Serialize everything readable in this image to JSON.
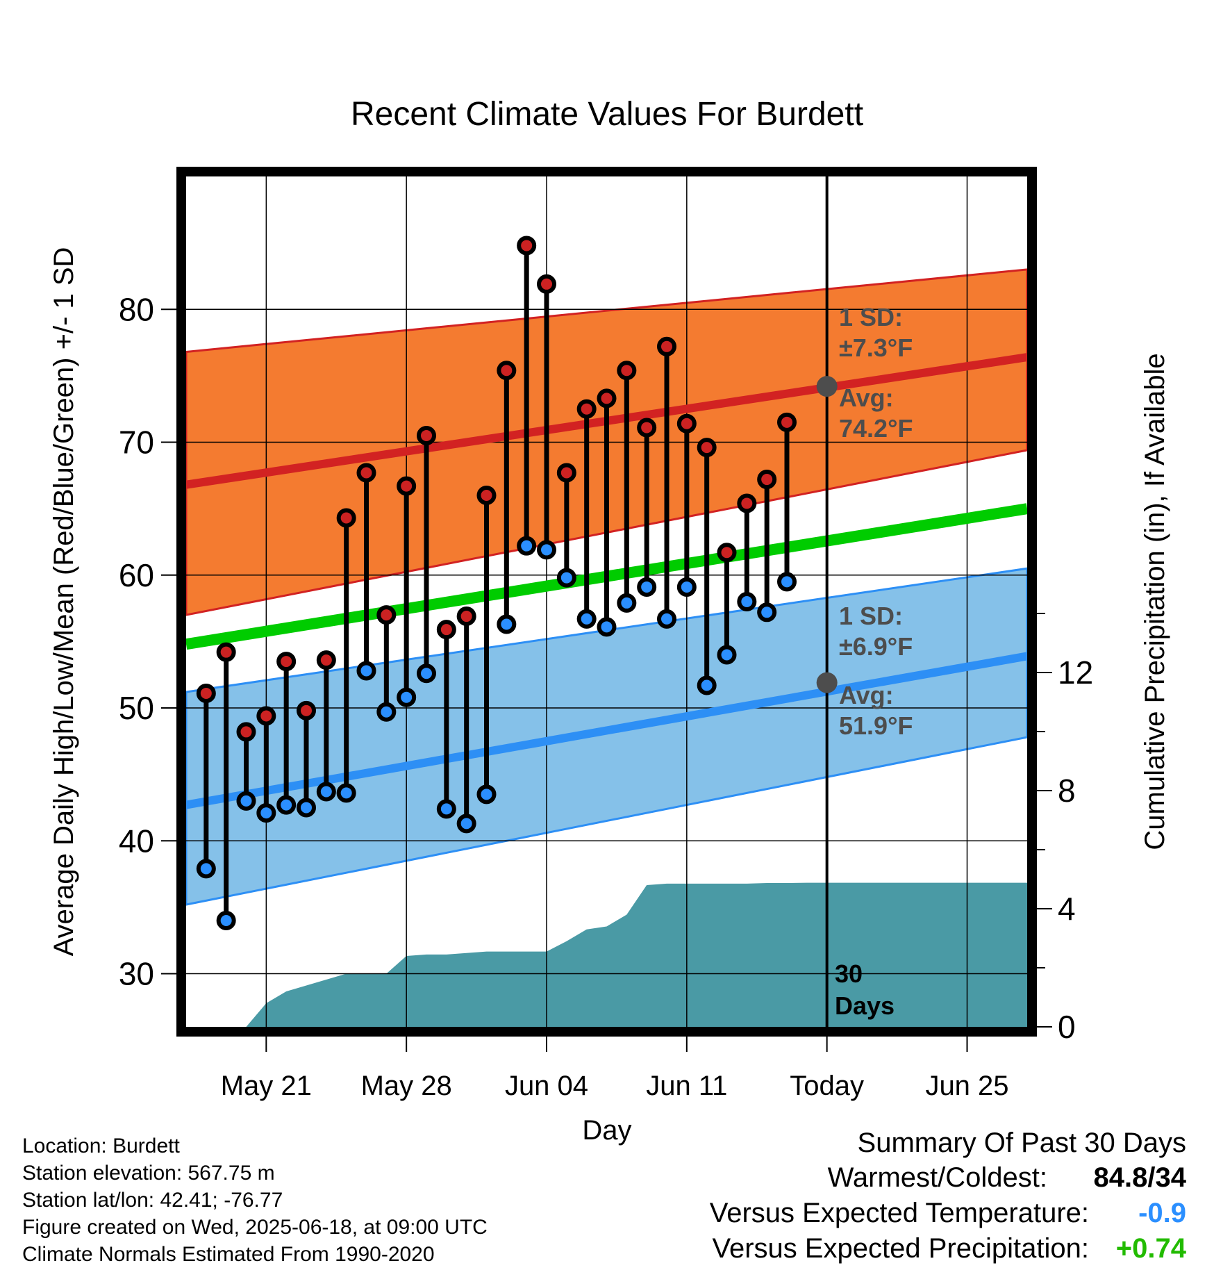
{
  "chart_data": {
    "type": "line",
    "title": "Recent Climate Values For Burdett",
    "xlabel": "Day",
    "ylabel": "Average Daily High/Low/Mean (Red/Blue/Green) +/- 1 SD",
    "y2label": "Cumulative Precipitation (in), If Available",
    "ylim": [
      26,
      90
    ],
    "y2lim": [
      0,
      28.8
    ],
    "x_range_days": [
      "2025-05-17",
      "2025-06-28"
    ],
    "x_ticks": [
      {
        "date": "2025-05-21",
        "label": "May 21"
      },
      {
        "date": "2025-05-28",
        "label": "May 28"
      },
      {
        "date": "2025-06-04",
        "label": "Jun 04"
      },
      {
        "date": "2025-06-11",
        "label": "Jun 11"
      },
      {
        "date": "2025-06-18",
        "label": "Today"
      },
      {
        "date": "2025-06-25",
        "label": "Jun 25"
      }
    ],
    "y_ticks": [
      "30",
      "40",
      "50",
      "60",
      "70",
      "80"
    ],
    "y2_ticks": [
      "0",
      "4",
      "8",
      "12"
    ],
    "grid": true,
    "today_marker": {
      "date": "2025-06-18",
      "label_line1": "30",
      "label_line2": "Days"
    },
    "normals": {
      "dates": [
        "2025-05-17",
        "2025-06-28"
      ],
      "high_avg": [
        66.8,
        76.4
      ],
      "high_upper": [
        76.8,
        83.0
      ],
      "high_lower": [
        57.0,
        69.4
      ],
      "mean_avg": [
        54.8,
        65.0
      ],
      "low_avg": [
        42.7,
        53.9
      ],
      "low_upper": [
        51.2,
        60.5
      ],
      "low_lower": [
        35.2,
        47.8
      ]
    },
    "high_annotation": {
      "sd_label": "1 SD:",
      "sd_value": "±7.3°F",
      "avg_label": "Avg:",
      "avg_value": "74.2°F",
      "avg": 74.2
    },
    "low_annotation": {
      "sd_label": "1 SD:",
      "sd_value": "±6.9°F",
      "avg_label": "Avg:",
      "avg_value": "51.9°F",
      "avg": 51.9
    },
    "daily": {
      "dates": [
        "2025-05-18",
        "2025-05-19",
        "2025-05-20",
        "2025-05-21",
        "2025-05-22",
        "2025-05-23",
        "2025-05-24",
        "2025-05-25",
        "2025-05-26",
        "2025-05-27",
        "2025-05-28",
        "2025-05-29",
        "2025-05-30",
        "2025-05-31",
        "2025-06-01",
        "2025-06-02",
        "2025-06-03",
        "2025-06-04",
        "2025-06-05",
        "2025-06-06",
        "2025-06-07",
        "2025-06-08",
        "2025-06-09",
        "2025-06-10",
        "2025-06-11",
        "2025-06-12",
        "2025-06-13",
        "2025-06-14",
        "2025-06-15",
        "2025-06-16",
        "2025-06-17"
      ],
      "highs": [
        51.1,
        54.2,
        48.2,
        49.4,
        53.5,
        49.8,
        53.6,
        64.3,
        67.7,
        57.0,
        66.7,
        70.5,
        55.9,
        56.9,
        66.0,
        75.4,
        84.8,
        81.9,
        67.7,
        72.5,
        73.3,
        75.4,
        71.1,
        77.2,
        71.4,
        69.6,
        61.7,
        65.4,
        67.2,
        71.5,
        null
      ],
      "lows": [
        37.9,
        34.0,
        43.0,
        42.1,
        42.7,
        42.5,
        43.7,
        43.6,
        52.8,
        49.7,
        50.8,
        52.6,
        42.4,
        41.3,
        43.5,
        56.3,
        62.2,
        61.9,
        59.8,
        56.7,
        56.1,
        57.9,
        59.1,
        56.7,
        59.1,
        51.7,
        54.0,
        58.0,
        57.2,
        59.5,
        null
      ]
    },
    "precip": {
      "dates": [
        "2025-05-17",
        "2025-05-18",
        "2025-05-19",
        "2025-05-20",
        "2025-05-21",
        "2025-05-22",
        "2025-05-23",
        "2025-05-24",
        "2025-05-25",
        "2025-05-26",
        "2025-05-27",
        "2025-05-28",
        "2025-05-29",
        "2025-05-30",
        "2025-05-31",
        "2025-06-01",
        "2025-06-02",
        "2025-06-03",
        "2025-06-04",
        "2025-06-05",
        "2025-06-06",
        "2025-06-07",
        "2025-06-08",
        "2025-06-09",
        "2025-06-10",
        "2025-06-11",
        "2025-06-12",
        "2025-06-13",
        "2025-06-14",
        "2025-06-15",
        "2025-06-16",
        "2025-06-17",
        "2025-06-18",
        "2025-06-28"
      ],
      "values": [
        0,
        0,
        0,
        0,
        0.8,
        1.2,
        1.4,
        1.6,
        1.8,
        1.8,
        1.8,
        2.4,
        2.45,
        2.45,
        2.5,
        2.55,
        2.55,
        2.55,
        2.55,
        2.9,
        3.3,
        3.4,
        3.8,
        4.8,
        4.85,
        4.85,
        4.85,
        4.85,
        4.85,
        4.87,
        4.87,
        4.88,
        4.88,
        4.88
      ]
    }
  },
  "info": {
    "location": "Location: Burdett",
    "elevation": "Station elevation: 567.75 m",
    "latlon": "Station lat/lon: 42.41; -76.77",
    "created": "Figure created on Wed, 2025-06-18, at 09:00 UTC",
    "normals": "Climate Normals Estimated From 1990-2020"
  },
  "summary": {
    "title": "Summary Of Past 30 Days",
    "warmest_coldest_label": "Warmest/Coldest:",
    "warmest_coldest_value": "84.8/34",
    "temp_label": "Versus Expected Temperature:",
    "temp_value": "-0.9",
    "temp_color": "#2b8fff",
    "precip_label": "Versus Expected Precipitation:",
    "precip_value": "+0.74",
    "precip_color": "#22bb00"
  },
  "colors": {
    "high_band": "#f47b30",
    "high_line": "#d22222",
    "low_band": "#85c1e9",
    "low_line": "#2d8ff5",
    "mean_line": "#00cc00",
    "precip_fill": "#4a9aa5",
    "annotation_text": "#4d4d4d",
    "high_dot": "#cc2222",
    "low_dot": "#2b8fff"
  }
}
